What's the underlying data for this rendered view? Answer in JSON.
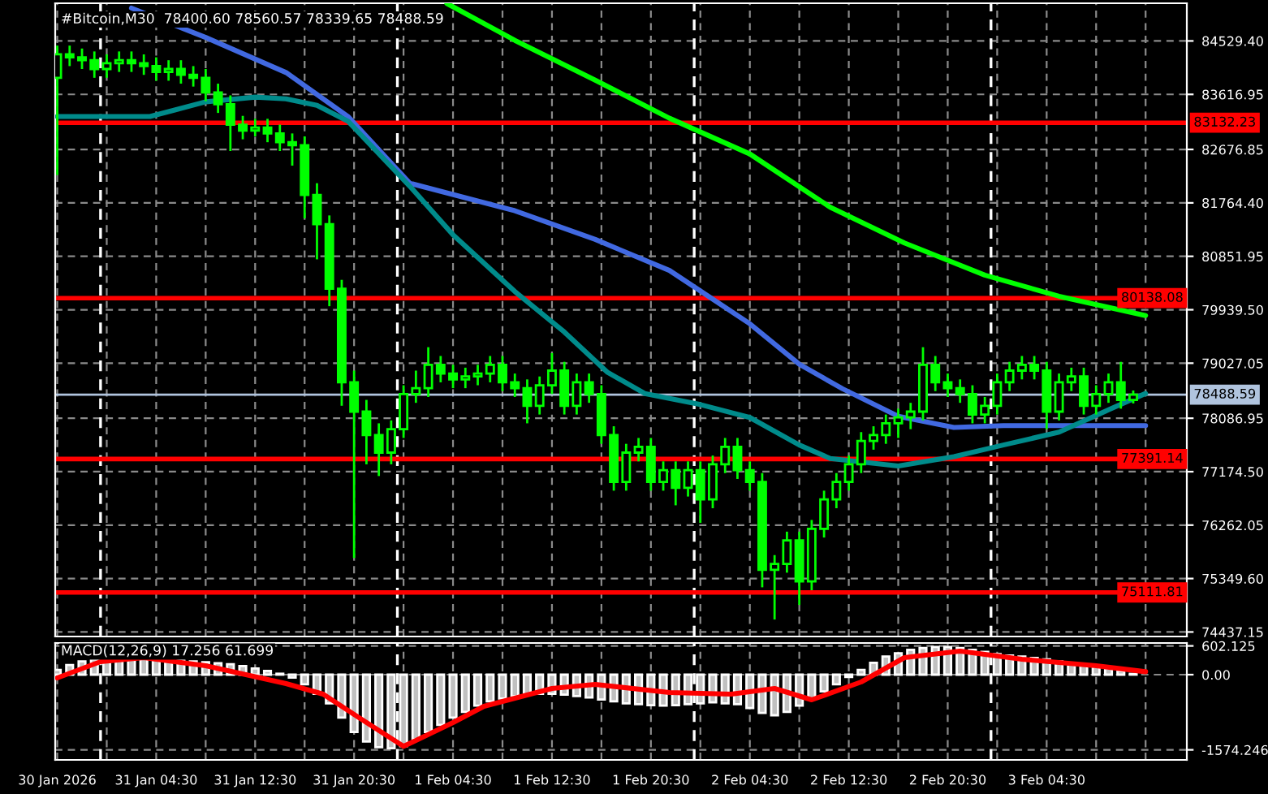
{
  "chart_data": [
    {
      "type": "candlestick",
      "title": "#Bitcoin,M30  78400.60 78560.57 78339.65 78488.59",
      "series": [
        {
          "color": "#00ff00",
          "x": [
            "2026-01-30T20:30",
            "2026-01-30T21:30",
            "2026-01-30T22:30",
            "2026-01-30T23:30",
            "2026-01-31T00:30",
            "2026-01-31T01:30",
            "2026-01-31T02:30",
            "2026-01-31T03:30",
            "2026-01-31T04:30",
            "2026-01-31T05:30",
            "2026-01-31T06:30",
            "2026-01-31T07:30",
            "2026-01-31T08:30",
            "2026-01-31T09:30",
            "2026-01-31T10:30",
            "2026-01-31T11:30",
            "2026-01-31T12:30",
            "2026-01-31T13:30",
            "2026-01-31T14:30",
            "2026-01-31T15:30",
            "2026-01-31T16:30",
            "2026-01-31T17:30",
            "2026-01-31T18:30",
            "2026-01-31T19:30",
            "2026-01-31T20:30",
            "2026-01-31T21:30",
            "2026-01-31T22:30",
            "2026-01-31T23:30",
            "2026-02-01T00:30",
            "2026-02-01T01:30",
            "2026-02-01T02:30",
            "2026-02-01T03:30",
            "2026-02-01T04:30",
            "2026-02-01T05:30",
            "2026-02-01T06:30",
            "2026-02-01T07:30",
            "2026-02-01T08:30",
            "2026-02-01T09:30",
            "2026-02-01T10:30",
            "2026-02-01T11:30",
            "2026-02-01T12:30",
            "2026-02-01T13:30",
            "2026-02-01T14:30",
            "2026-02-01T15:30",
            "2026-02-01T16:30",
            "2026-02-01T17:30",
            "2026-02-01T18:30",
            "2026-02-01T19:30",
            "2026-02-01T20:30",
            "2026-02-01T21:30",
            "2026-02-01T22:30",
            "2026-02-01T23:30",
            "2026-02-02T00:30",
            "2026-02-02T01:30",
            "2026-02-02T02:30",
            "2026-02-02T03:30",
            "2026-02-02T04:30",
            "2026-02-02T05:30",
            "2026-02-02T06:30",
            "2026-02-02T07:30",
            "2026-02-02T08:30",
            "2026-02-02T09:30",
            "2026-02-02T10:30",
            "2026-02-02T11:30",
            "2026-02-02T12:30",
            "2026-02-02T13:30",
            "2026-02-02T14:30",
            "2026-02-02T15:30",
            "2026-02-02T16:30",
            "2026-02-02T17:30",
            "2026-02-02T18:30",
            "2026-02-02T19:30",
            "2026-02-02T20:30",
            "2026-02-02T21:30",
            "2026-02-02T22:30",
            "2026-02-02T23:30",
            "2026-02-03T00:30",
            "2026-02-03T01:30",
            "2026-02-03T02:30",
            "2026-02-03T03:30",
            "2026-02-03T04:30",
            "2026-02-03T05:30",
            "2026-02-03T06:30",
            "2026-02-03T07:30",
            "2026-02-03T08:30",
            "2026-02-03T09:30",
            "2026-02-03T10:30",
            "2026-02-03T11:30"
          ],
          "ohlc": [
            [
              83900,
              84450,
              82240,
              84300
            ],
            [
              84300,
              84450,
              84100,
              84250
            ],
            [
              84250,
              84400,
              84050,
              84200
            ],
            [
              84200,
              84350,
              83900,
              84050
            ],
            [
              84050,
              84300,
              83900,
              84150
            ],
            [
              84150,
              84350,
              84000,
              84200
            ],
            [
              84200,
              84350,
              84000,
              84150
            ],
            [
              84150,
              84300,
              83950,
              84100
            ],
            [
              84100,
              84250,
              83850,
              84000
            ],
            [
              84000,
              84200,
              83850,
              84050
            ],
            [
              84050,
              84200,
              83800,
              83950
            ],
            [
              83950,
              84100,
              83750,
              83900
            ],
            [
              83900,
              84050,
              83500,
              83650
            ],
            [
              83650,
              83800,
              83300,
              83450
            ],
            [
              83450,
              83600,
              82650,
              83100
            ],
            [
              83100,
              83250,
              82850,
              83000
            ],
            [
              83000,
              83200,
              82900,
              83050
            ],
            [
              83050,
              83200,
              82800,
              82950
            ],
            [
              82950,
              83100,
              82650,
              82800
            ],
            [
              82800,
              82950,
              82400,
              82750
            ],
            [
              82750,
              82900,
              81500,
              81900
            ],
            [
              81900,
              82100,
              80800,
              81400
            ],
            [
              81400,
              81550,
              80000,
              80300
            ],
            [
              80300,
              80450,
              78300,
              78700
            ],
            [
              78700,
              78900,
              75700,
              78200
            ],
            [
              78200,
              78400,
              77300,
              77800
            ],
            [
              77800,
              78000,
              77100,
              77500
            ],
            [
              77500,
              78050,
              77300,
              77900
            ],
            [
              77900,
              78650,
              77750,
              78500
            ],
            [
              78500,
              78900,
              78350,
              78600
            ],
            [
              78600,
              79300,
              78450,
              79000
            ],
            [
              79000,
              79150,
              78700,
              78850
            ],
            [
              78850,
              79000,
              78600,
              78750
            ],
            [
              78750,
              78950,
              78600,
              78800
            ],
            [
              78800,
              79000,
              78650,
              78850
            ],
            [
              78850,
              79150,
              78700,
              79000
            ],
            [
              79000,
              79150,
              78550,
              78700
            ],
            [
              78700,
              78850,
              78450,
              78600
            ],
            [
              78600,
              78750,
              78000,
              78300
            ],
            [
              78300,
              78800,
              78150,
              78650
            ],
            [
              78650,
              79200,
              78500,
              78900
            ],
            [
              78900,
              79050,
              78150,
              78300
            ],
            [
              78300,
              78850,
              78150,
              78700
            ],
            [
              78700,
              78850,
              78350,
              78500
            ],
            [
              78500,
              78650,
              77650,
              77800
            ],
            [
              77800,
              77950,
              76850,
              77000
            ],
            [
              77000,
              77650,
              76850,
              77500
            ],
            [
              77500,
              77750,
              77350,
              77600
            ],
            [
              77600,
              77750,
              76850,
              77000
            ],
            [
              77000,
              77350,
              76850,
              77200
            ],
            [
              77200,
              77350,
              76600,
              76900
            ],
            [
              76900,
              77350,
              76750,
              77200
            ],
            [
              77200,
              77350,
              76300,
              76700
            ],
            [
              76700,
              77450,
              76550,
              77300
            ],
            [
              77300,
              77750,
              77150,
              77600
            ],
            [
              77600,
              77750,
              77050,
              77200
            ],
            [
              77200,
              77350,
              76850,
              77000
            ],
            [
              77000,
              77150,
              75200,
              75500
            ],
            [
              75500,
              75750,
              74650,
              75600
            ],
            [
              75600,
              76150,
              75450,
              76000
            ],
            [
              76000,
              76150,
              74900,
              75300
            ],
            [
              75300,
              76350,
              75150,
              76200
            ],
            [
              76200,
              76850,
              76050,
              76700
            ],
            [
              76700,
              77150,
              76550,
              77000
            ],
            [
              77000,
              77450,
              76850,
              77300
            ],
            [
              77300,
              77850,
              77150,
              77700
            ],
            [
              77700,
              77950,
              77550,
              77800
            ],
            [
              77800,
              78150,
              77650,
              78000
            ],
            [
              78000,
              78250,
              77750,
              78100
            ],
            [
              78100,
              78350,
              77900,
              78200
            ],
            [
              78200,
              79300,
              78050,
              79000
            ],
            [
              79000,
              79150,
              78550,
              78700
            ],
            [
              78700,
              78850,
              78450,
              78600
            ],
            [
              78600,
              78750,
              78350,
              78500
            ],
            [
              78500,
              78650,
              78000,
              78150
            ],
            [
              78150,
              78450,
              78000,
              78300
            ],
            [
              78300,
              78850,
              78150,
              78700
            ],
            [
              78700,
              79050,
              78550,
              78900
            ],
            [
              78900,
              79150,
              78750,
              79000
            ],
            [
              79000,
              79150,
              78750,
              78900
            ],
            [
              78900,
              79050,
              77900,
              78200
            ],
            [
              78200,
              78850,
              78050,
              78700
            ],
            [
              78700,
              78950,
              78550,
              78800
            ],
            [
              78800,
              78950,
              78150,
              78300
            ],
            [
              78300,
              78650,
              78150,
              78500
            ],
            [
              78500,
              78850,
              78350,
              78700
            ],
            [
              78700,
              79050,
              78250,
              78400.6
            ],
            [
              78400.6,
              78560.57,
              78339.65,
              78488.59
            ]
          ]
        },
        {
          "type": "line",
          "color": "#4169e1",
          "x": [
            "2026-01-31T02:30",
            "2026-01-31T08:30",
            "2026-01-31T15:00",
            "2026-01-31T20:00",
            "2026-02-01T01:00",
            "2026-02-01T09:30",
            "2026-02-01T16:00",
            "2026-02-01T22:00",
            "2026-02-02T04:30",
            "2026-02-02T08:30",
            "2026-02-02T12:00",
            "2026-02-02T16:30",
            "2026-02-02T21:00",
            "2026-02-03T01:00",
            "2026-02-03T12:30"
          ],
          "values": [
            85090,
            84590,
            83990,
            83240,
            82100,
            81630,
            81140,
            80610,
            79700,
            79010,
            78590,
            78120,
            77930,
            77960,
            77960
          ]
        },
        {
          "type": "line",
          "color": "#008b8b",
          "x": [
            "2026-01-30T20:30",
            "2026-01-31T04:00",
            "2026-01-31T06:00",
            "2026-01-31T08:30",
            "2026-01-31T12:30",
            "2026-01-31T15:00",
            "2026-01-31T17:30",
            "2026-01-31T20:00",
            "2026-02-01T01:00",
            "2026-02-01T04:30",
            "2026-02-01T09:30",
            "2026-02-01T13:30",
            "2026-02-01T17:00",
            "2026-02-01T20:00",
            "2026-02-02T00:30",
            "2026-02-02T04:30",
            "2026-02-02T08:30",
            "2026-02-02T11:00",
            "2026-02-02T16:30",
            "2026-02-02T21:00",
            "2026-02-03T01:00",
            "2026-02-03T05:30",
            "2026-02-03T09:30",
            "2026-02-03T12:30"
          ],
          "values": [
            83240,
            83240,
            83350,
            83490,
            83570,
            83540,
            83430,
            83160,
            82050,
            81220,
            80250,
            79560,
            78870,
            78510,
            78320,
            78100,
            77630,
            77400,
            77270,
            77430,
            77630,
            77850,
            78230,
            78510
          ]
        },
        {
          "type": "line",
          "color": "#00ff00",
          "x": [
            "2026-02-01T04:00",
            "2026-02-01T09:30",
            "2026-02-01T16:00",
            "2026-02-01T22:00",
            "2026-02-02T04:30",
            "2026-02-02T11:00",
            "2026-02-02T17:00",
            "2026-02-02T23:30",
            "2026-02-03T05:30",
            "2026-02-03T12:30"
          ],
          "values": [
            85170,
            84540,
            83860,
            83210,
            82600,
            81690,
            81080,
            80530,
            80170,
            79840
          ]
        }
      ],
      "xlim": [
        "2026-01-30T20:20",
        "2026-02-03T15:50"
      ],
      "xticks": [
        {
          "value": "2026-01-30T20:30",
          "label": null
        },
        {
          "value": "2026-01-31T00:30",
          "label": null
        },
        {
          "value": "2026-01-31T04:30",
          "label": null
        },
        {
          "value": "2026-01-31T08:30",
          "label": null
        },
        {
          "value": "2026-01-31T12:30",
          "label": null
        },
        {
          "value": "2026-01-31T16:30",
          "label": null
        },
        {
          "value": "2026-01-31T20:30",
          "label": null
        },
        {
          "value": "2026-02-01T00:30",
          "label": null
        },
        {
          "value": "2026-02-01T04:30",
          "label": null
        },
        {
          "value": "2026-02-01T08:30",
          "label": null
        },
        {
          "value": "2026-02-01T12:30",
          "label": null
        },
        {
          "value": "2026-02-01T16:30",
          "label": null
        },
        {
          "value": "2026-02-01T20:30",
          "label": null
        },
        {
          "value": "2026-02-02T00:30",
          "label": null
        },
        {
          "value": "2026-02-02T04:30",
          "label": null
        },
        {
          "value": "2026-02-02T08:30",
          "label": null
        },
        {
          "value": "2026-02-02T12:30",
          "label": null
        },
        {
          "value": "2026-02-02T16:30",
          "label": null
        },
        {
          "value": "2026-02-02T20:30",
          "label": null
        },
        {
          "value": "2026-02-03T00:30",
          "label": null
        },
        {
          "value": "2026-02-03T04:30",
          "label": null
        },
        {
          "value": "2026-02-03T08:30",
          "label": null
        },
        {
          "value": "2026-02-03T12:30",
          "label": null
        }
      ],
      "ylim": [
        74360,
        85173
      ],
      "yticks": [
        {
          "value": 84529.4,
          "label": "84529.40"
        },
        {
          "value": 83616.95,
          "label": "83616.95"
        },
        {
          "value": 82676.85,
          "label": "82676.85"
        },
        {
          "value": 81764.4,
          "label": "81764.40"
        },
        {
          "value": 80851.95,
          "label": "80851.95"
        },
        {
          "value": 79939.5,
          "label": "79939.50"
        },
        {
          "value": 79027.05,
          "label": "79027.05"
        },
        {
          "value": 78086.95,
          "label": "78086.95"
        },
        {
          "value": 77174.5,
          "label": "77174.50"
        },
        {
          "value": 76262.05,
          "label": "76262.05"
        },
        {
          "value": 75349.6,
          "label": "75349.60"
        },
        {
          "value": 74437.15,
          "label": "74437.15"
        }
      ],
      "ref_lines": [
        {
          "axis": "x",
          "value": "2026-01-31T00:00",
          "color": "#ffffff",
          "line_style": "dashed"
        },
        {
          "axis": "x",
          "value": "2026-02-01T00:00",
          "color": "#ffffff",
          "line_style": "dashed"
        },
        {
          "axis": "x",
          "value": "2026-02-02T00:00",
          "color": "#ffffff",
          "line_style": "dashed"
        },
        {
          "axis": "x",
          "value": "2026-02-03T00:00",
          "color": "#ffffff",
          "line_style": "dashed"
        },
        {
          "axis": "y",
          "value": 83132.23,
          "label": "83132.23",
          "color": "#ff0000",
          "line_style": "solid"
        },
        {
          "axis": "y",
          "value": 80138.08,
          "label": "80138.08",
          "color": "#ff0000",
          "line_style": "solid"
        },
        {
          "axis": "y",
          "value": 77391.14,
          "label": "77391.14",
          "color": "#ff0000",
          "line_style": "solid"
        },
        {
          "axis": "y",
          "value": 75111.81,
          "label": "75111.81",
          "color": "#ff0000",
          "line_style": "solid"
        },
        {
          "axis": "y",
          "value": 78488.59,
          "label": "78488.59",
          "color": "#b0c4de",
          "line_style": "solid"
        }
      ],
      "grid": true,
      "tick_labels": "y"
    },
    {
      "type": "bar",
      "title": "MACD(12,26,9) 17.256 61.699",
      "series": [
        {
          "color": "#c0c0c0",
          "x": [
            "2026-01-30T20:30",
            "2026-01-30T21:30",
            "2026-01-30T22:30",
            "2026-01-30T23:30",
            "2026-01-31T00:30",
            "2026-01-31T01:30",
            "2026-01-31T02:30",
            "2026-01-31T03:30",
            "2026-01-31T04:30",
            "2026-01-31T05:30",
            "2026-01-31T06:30",
            "2026-01-31T07:30",
            "2026-01-31T08:30",
            "2026-01-31T09:30",
            "2026-01-31T10:30",
            "2026-01-31T11:30",
            "2026-01-31T12:30",
            "2026-01-31T13:30",
            "2026-01-31T14:30",
            "2026-01-31T15:30",
            "2026-01-31T16:30",
            "2026-01-31T17:30",
            "2026-01-31T18:30",
            "2026-01-31T19:30",
            "2026-01-31T20:30",
            "2026-01-31T21:30",
            "2026-01-31T22:30",
            "2026-01-31T23:30",
            "2026-02-01T00:30",
            "2026-02-01T01:30",
            "2026-02-01T02:30",
            "2026-02-01T03:30",
            "2026-02-01T04:30",
            "2026-02-01T05:30",
            "2026-02-01T06:30",
            "2026-02-01T07:30",
            "2026-02-01T08:30",
            "2026-02-01T09:30",
            "2026-02-01T10:30",
            "2026-02-01T11:30",
            "2026-02-01T12:30",
            "2026-02-01T13:30",
            "2026-02-01T14:30",
            "2026-02-01T15:30",
            "2026-02-01T16:30",
            "2026-02-01T17:30",
            "2026-02-01T18:30",
            "2026-02-01T19:30",
            "2026-02-01T20:30",
            "2026-02-01T21:30",
            "2026-02-01T22:30",
            "2026-02-01T23:30",
            "2026-02-02T00:30",
            "2026-02-02T01:30",
            "2026-02-02T02:30",
            "2026-02-02T03:30",
            "2026-02-02T04:30",
            "2026-02-02T05:30",
            "2026-02-02T06:30",
            "2026-02-02T07:30",
            "2026-02-02T08:30",
            "2026-02-02T09:30",
            "2026-02-02T10:30",
            "2026-02-02T11:30",
            "2026-02-02T12:30",
            "2026-02-02T13:30",
            "2026-02-02T14:30",
            "2026-02-02T15:30",
            "2026-02-02T16:30",
            "2026-02-02T17:30",
            "2026-02-02T18:30",
            "2026-02-02T19:30",
            "2026-02-02T20:30",
            "2026-02-02T21:30",
            "2026-02-02T22:30",
            "2026-02-02T23:30",
            "2026-02-03T00:30",
            "2026-02-03T01:30",
            "2026-02-03T02:30",
            "2026-02-03T03:30",
            "2026-02-03T04:30",
            "2026-02-03T05:30",
            "2026-02-03T06:30",
            "2026-02-03T07:30",
            "2026-02-03T08:30",
            "2026-02-03T09:30",
            "2026-02-03T10:30",
            "2026-02-03T11:30"
          ],
          "values": [
            100,
            200,
            280,
            320,
            330,
            350,
            350,
            340,
            330,
            320,
            300,
            280,
            260,
            240,
            220,
            180,
            130,
            80,
            20,
            -60,
            -200,
            -400,
            -600,
            -900,
            -1200,
            -1400,
            -1520,
            -1540,
            -1500,
            -1350,
            -1200,
            -1050,
            -900,
            -780,
            -650,
            -560,
            -500,
            -450,
            -420,
            -400,
            -400,
            -420,
            -450,
            -480,
            -520,
            -560,
            -600,
            -620,
            -640,
            -650,
            -640,
            -620,
            -600,
            -580,
            -600,
            -620,
            -700,
            -800,
            -850,
            -780,
            -650,
            -500,
            -350,
            -200,
            -50,
            100,
            250,
            380,
            450,
            520,
            560,
            580,
            580,
            560,
            520,
            480,
            430,
            400,
            380,
            350,
            320,
            280,
            240,
            200,
            160,
            130,
            80,
            17.256
          ]
        },
        {
          "type": "line",
          "color": "#ff0000",
          "x": [
            "2026-01-30T20:30",
            "2026-01-31T00:00",
            "2026-01-31T03:30",
            "2026-01-31T08:30",
            "2026-01-31T15:00",
            "2026-01-31T18:00",
            "2026-01-31T21:00",
            "2026-02-01T00:30",
            "2026-02-01T04:30",
            "2026-02-01T07:00",
            "2026-02-01T12:30",
            "2026-02-01T16:00",
            "2026-02-01T22:00",
            "2026-02-02T03:00",
            "2026-02-02T06:30",
            "2026-02-02T09:30",
            "2026-02-02T13:30",
            "2026-02-02T17:00",
            "2026-02-02T21:30",
            "2026-02-03T02:30",
            "2026-02-03T08:30",
            "2026-02-03T12:30"
          ],
          "values": [
            -68,
            272,
            357,
            187,
            -187,
            -408,
            -918,
            -1500,
            -1003,
            -663,
            -289,
            -204,
            -374,
            -408,
            -289,
            -527,
            -153,
            357,
            493,
            323,
            187,
            61.699
          ]
        }
      ],
      "xlim": [
        "2026-01-30T20:20",
        "2026-02-03T15:50"
      ],
      "xticks": [
        {
          "value": "2026-01-30T20:30",
          "label": "30 Jan 2026"
        },
        {
          "value": "2026-01-31T00:30",
          "label": null
        },
        {
          "value": "2026-01-31T04:30",
          "label": "31 Jan 04:30"
        },
        {
          "value": "2026-01-31T08:30",
          "label": null
        },
        {
          "value": "2026-01-31T12:30",
          "label": "31 Jan 12:30"
        },
        {
          "value": "2026-01-31T16:30",
          "label": null
        },
        {
          "value": "2026-01-31T20:30",
          "label": "31 Jan 20:30"
        },
        {
          "value": "2026-02-01T00:30",
          "label": null
        },
        {
          "value": "2026-02-01T04:30",
          "label": "1 Feb 04:30"
        },
        {
          "value": "2026-02-01T08:30",
          "label": null
        },
        {
          "value": "2026-02-01T12:30",
          "label": "1 Feb 12:30"
        },
        {
          "value": "2026-02-01T16:30",
          "label": null
        },
        {
          "value": "2026-02-01T20:30",
          "label": "1 Feb 20:30"
        },
        {
          "value": "2026-02-02T00:30",
          "label": null
        },
        {
          "value": "2026-02-02T04:30",
          "label": "2 Feb 04:30"
        },
        {
          "value": "2026-02-02T08:30",
          "label": null
        },
        {
          "value": "2026-02-02T12:30",
          "label": "2 Feb 12:30"
        },
        {
          "value": "2026-02-02T16:30",
          "label": null
        },
        {
          "value": "2026-02-02T20:30",
          "label": "2 Feb 20:30"
        },
        {
          "value": "2026-02-03T00:30",
          "label": null
        },
        {
          "value": "2026-02-03T04:30",
          "label": "3 Feb 04:30"
        },
        {
          "value": "2026-02-03T08:30",
          "label": null
        },
        {
          "value": "2026-02-03T12:30",
          "label": null
        }
      ],
      "ylim": [
        -1785,
        663
      ],
      "yticks": [
        {
          "value": 602.125,
          "label": "602.125"
        },
        {
          "value": 0,
          "label": "0.00"
        },
        {
          "value": -1574.246,
          "label": "-1574.246"
        }
      ],
      "ref_lines": [
        {
          "axis": "x",
          "value": "2026-01-31T00:00",
          "color": "#ffffff",
          "line_style": "dashed"
        },
        {
          "axis": "x",
          "value": "2026-02-01T00:00",
          "color": "#ffffff",
          "line_style": "dashed"
        },
        {
          "axis": "x",
          "value": "2026-02-02T00:00",
          "color": "#ffffff",
          "line_style": "dashed"
        },
        {
          "axis": "x",
          "value": "2026-02-03T00:00",
          "color": "#ffffff",
          "line_style": "dashed"
        }
      ],
      "grid": true
    }
  ]
}
